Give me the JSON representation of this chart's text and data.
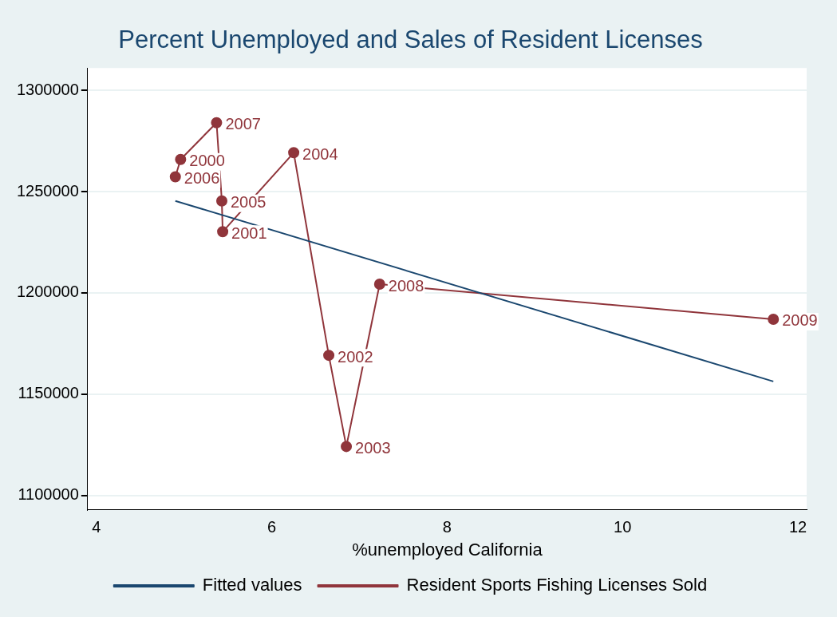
{
  "chart_data": {
    "type": "line",
    "title": "Percent Unemployed and Sales of Resident Licenses",
    "xlabel": "%unemployed California",
    "xlim": [
      3.9,
      12.1
    ],
    "xticks": [
      4,
      6,
      8,
      10,
      12
    ],
    "ylim": [
      1093000,
      1311000
    ],
    "yticks": [
      1100000,
      1150000,
      1200000,
      1250000,
      1300000
    ],
    "grid": "y",
    "legend": "bottom",
    "series": [
      {
        "name": "Fitted values",
        "color": "#1a476f",
        "marker": "none",
        "x": [
          4.9,
          11.72
        ],
        "values": [
          1245400,
          1156300
        ]
      },
      {
        "name": "Resident Sports Fishing Licenses Sold",
        "color": "#90353b",
        "marker": "circle",
        "x": [
          4.9,
          4.96,
          5.37,
          5.43,
          5.44,
          6.25,
          6.65,
          6.85,
          7.23,
          11.72
        ],
        "values": [
          1257300,
          1265900,
          1284000,
          1245400,
          1230200,
          1269200,
          1169200,
          1124200,
          1204300,
          1187000
        ]
      }
    ],
    "annotations": [
      {
        "text": "2006",
        "x": 4.9,
        "y": 1257300
      },
      {
        "text": "2000",
        "x": 4.96,
        "y": 1265900
      },
      {
        "text": "2007",
        "x": 5.37,
        "y": 1284000
      },
      {
        "text": "2005",
        "x": 5.43,
        "y": 1245400
      },
      {
        "text": "2001",
        "x": 5.44,
        "y": 1230200
      },
      {
        "text": "2004",
        "x": 6.25,
        "y": 1269200
      },
      {
        "text": "2002",
        "x": 6.65,
        "y": 1169200
      },
      {
        "text": "2003",
        "x": 6.85,
        "y": 1124200
      },
      {
        "text": "2008",
        "x": 7.23,
        "y": 1204300
      },
      {
        "text": "2009",
        "x": 11.72,
        "y": 1187000
      }
    ]
  }
}
